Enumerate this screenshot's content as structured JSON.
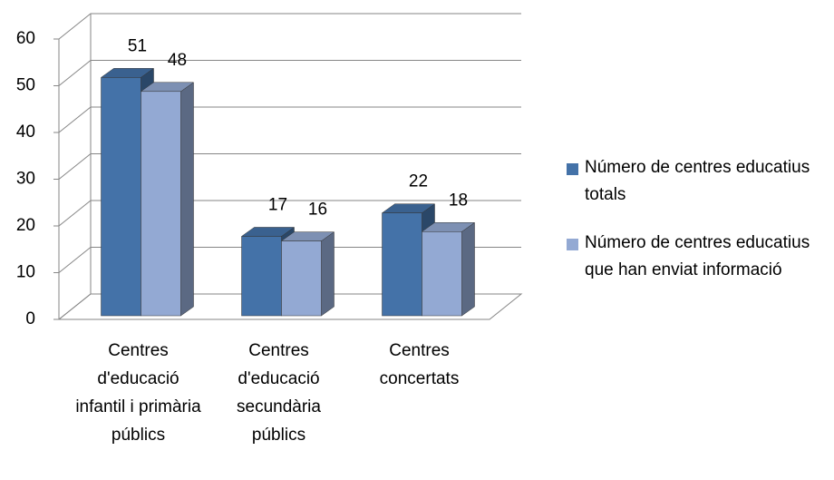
{
  "chart_data": {
    "type": "bar3d",
    "categories": [
      "Centres d'educació infantil i primària públics",
      "Centres d'educació secundària públics",
      "Centres concertats"
    ],
    "series": [
      {
        "name": "Número de centres educatius totals",
        "color": "#4472a8",
        "values": [
          51,
          17,
          22
        ]
      },
      {
        "name": "Número de centres educatius que han enviat informació",
        "color": "#93a9d3",
        "values": [
          48,
          16,
          18
        ]
      }
    ],
    "ylim": [
      0,
      60
    ],
    "yticks": [
      0,
      10,
      20,
      30,
      40,
      50,
      60
    ],
    "grid": true,
    "legend": "right"
  }
}
